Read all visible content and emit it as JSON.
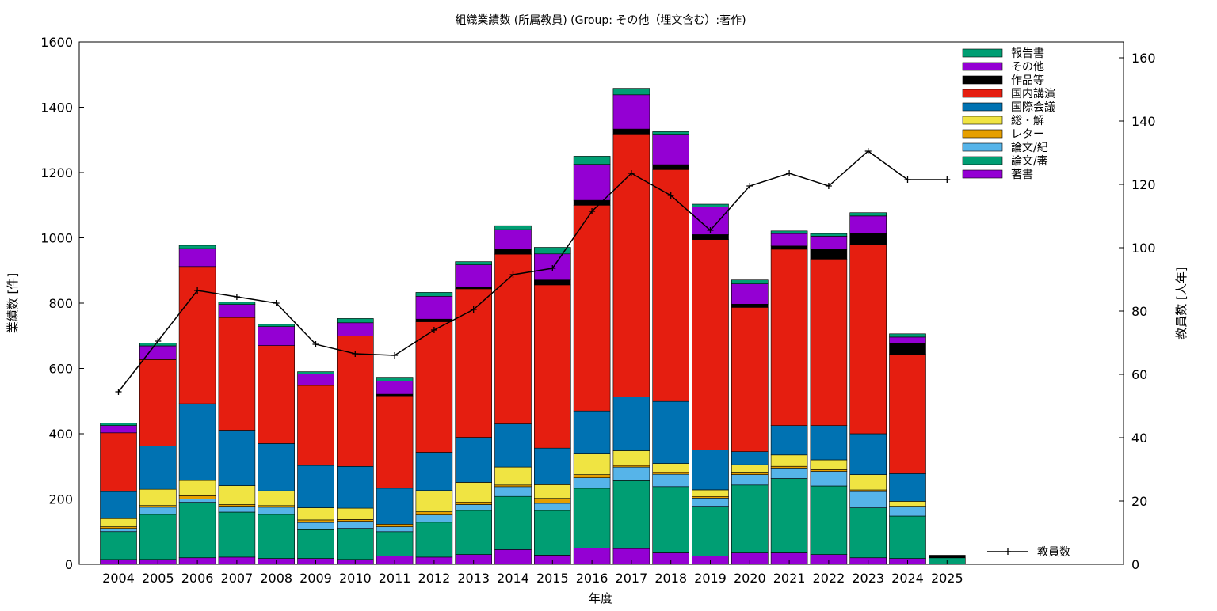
{
  "chart_data": {
    "type": "bar",
    "stacked": true,
    "title": "組織業績数 (所属教員) (Group: その他（埋文含む）:著作)",
    "xlabel": "年度",
    "ylabel": "業績数 [件]",
    "y2label": "教員数 [人年]",
    "ylim": [
      0,
      1600
    ],
    "y2lim": [
      0,
      165
    ],
    "yticks": [
      0,
      200,
      400,
      600,
      800,
      1000,
      1200,
      1400,
      1600
    ],
    "y2ticks": [
      0,
      20,
      40,
      60,
      80,
      100,
      120,
      140,
      160
    ],
    "legend_position": "top-right",
    "grid": false,
    "categories": [
      "2004",
      "2005",
      "2006",
      "2007",
      "2008",
      "2009",
      "2010",
      "2011",
      "2012",
      "2013",
      "2014",
      "2015",
      "2016",
      "2017",
      "2018",
      "2019",
      "2020",
      "2021",
      "2022",
      "2023",
      "2024",
      "2025"
    ],
    "series": [
      {
        "name": "著書",
        "color": "#9400d3",
        "values": [
          15,
          15,
          20,
          22,
          18,
          18,
          15,
          25,
          22,
          30,
          45,
          28,
          50,
          48,
          35,
          25,
          35,
          35,
          30,
          20,
          18,
          0
        ]
      },
      {
        "name": "論文/審",
        "color": "#009e73",
        "values": [
          85,
          138,
          170,
          138,
          135,
          88,
          95,
          75,
          107,
          135,
          163,
          137,
          183,
          208,
          203,
          153,
          208,
          228,
          210,
          153,
          130,
          20
        ]
      },
      {
        "name": "論文/紀",
        "color": "#56b4e9",
        "values": [
          10,
          22,
          10,
          18,
          22,
          22,
          22,
          15,
          22,
          18,
          30,
          22,
          32,
          42,
          38,
          25,
          32,
          32,
          45,
          50,
          30,
          0
        ]
      },
      {
        "name": "レター",
        "color": "#e69f00",
        "values": [
          5,
          5,
          10,
          5,
          5,
          8,
          5,
          8,
          10,
          8,
          5,
          15,
          10,
          5,
          5,
          5,
          5,
          5,
          5,
          5,
          0,
          0
        ]
      },
      {
        "name": "総・解",
        "color": "#f0e442",
        "values": [
          25,
          50,
          47,
          58,
          45,
          37,
          35,
          0,
          65,
          60,
          55,
          42,
          65,
          45,
          28,
          20,
          25,
          35,
          30,
          47,
          15,
          0
        ]
      },
      {
        "name": "国際会議",
        "color": "#0072b2",
        "values": [
          83,
          132,
          235,
          170,
          145,
          130,
          128,
          110,
          117,
          138,
          132,
          112,
          130,
          165,
          190,
          122,
          40,
          90,
          105,
          125,
          85,
          0
        ]
      },
      {
        "name": "国内講演",
        "color": "#e51e10",
        "values": [
          180,
          265,
          420,
          345,
          300,
          245,
          400,
          283,
          400,
          455,
          520,
          500,
          630,
          805,
          710,
          645,
          442,
          540,
          510,
          580,
          365,
          0
        ]
      },
      {
        "name": "作品等",
        "color": "#000000",
        "values": [
          0,
          0,
          0,
          0,
          0,
          0,
          0,
          5,
          8,
          5,
          15,
          15,
          15,
          15,
          15,
          15,
          10,
          10,
          30,
          35,
          35,
          8
        ],
        "_": ""
      },
      {
        "name": "その他",
        "color": "#9400d3",
        "values": [
          22,
          42,
          55,
          40,
          58,
          35,
          40,
          40,
          70,
          68,
          60,
          80,
          110,
          105,
          93,
          85,
          62,
          38,
          40,
          52,
          18,
          0
        ]
      },
      {
        "name": "報告書",
        "color": "#009e73",
        "values": [
          8,
          8,
          10,
          7,
          7,
          7,
          13,
          12,
          12,
          10,
          12,
          20,
          25,
          20,
          8,
          8,
          12,
          8,
          8,
          10,
          10,
          0
        ]
      }
    ],
    "line_series": {
      "name": "教員数",
      "axis": "y2",
      "values": [
        54.5,
        70.5,
        86.5,
        84.5,
        82.5,
        69.5,
        66.5,
        66.0,
        74.0,
        80.5,
        91.5,
        93.5,
        111.5,
        123.5,
        116.5,
        105.5,
        119.5,
        123.5,
        119.5,
        130.5,
        121.5,
        121.5
      ]
    }
  }
}
